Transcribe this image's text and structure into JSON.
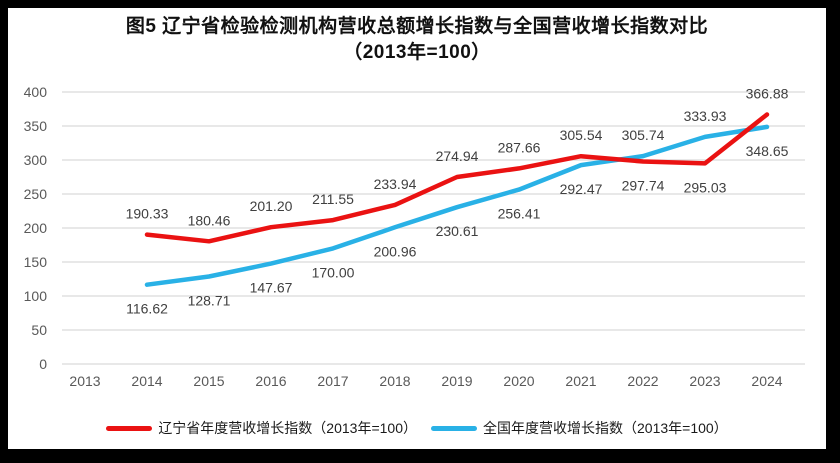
{
  "title": {
    "line1": "图5  辽宁省检验检测机构营收总额增长指数与全国营收增长指数对比",
    "line2": "（2013年=100）"
  },
  "colors": {
    "liaoning_line": "#ea1212",
    "national_line": "#29b1e6",
    "gridline": "#d9d9d9",
    "axis_text": "#595959",
    "data_label": "#404040",
    "frame": "#000000",
    "card": "#ffffff"
  },
  "chart_data": {
    "type": "line",
    "title": "图5 辽宁省检验检测机构营收总额增长指数与全国营收增长指数对比（2013年=100）",
    "categories": [
      "2013",
      "2014",
      "2015",
      "2016",
      "2017",
      "2018",
      "2019",
      "2020",
      "2021",
      "2022",
      "2023",
      "2024"
    ],
    "series": [
      {
        "name": "辽宁省年度营收增长指数（2013年=100）",
        "color": "#ea1212",
        "values": [
          null,
          190.33,
          180.46,
          201.2,
          211.55,
          233.94,
          274.94,
          287.66,
          305.54,
          297.74,
          295.03,
          366.88
        ]
      },
      {
        "name": "全国年度营收增长指数（2013年=100）",
        "color": "#29b1e6",
        "values": [
          null,
          116.62,
          128.71,
          147.67,
          170.0,
          200.96,
          230.61,
          256.41,
          292.47,
          305.74,
          333.93,
          348.65
        ]
      }
    ],
    "ylim": [
      0,
      400
    ],
    "ytick_step": 50,
    "grid": true,
    "data_labels": true,
    "data_label_decimals": 2,
    "legend_position": "bottom",
    "xlabel": "",
    "ylabel": ""
  }
}
